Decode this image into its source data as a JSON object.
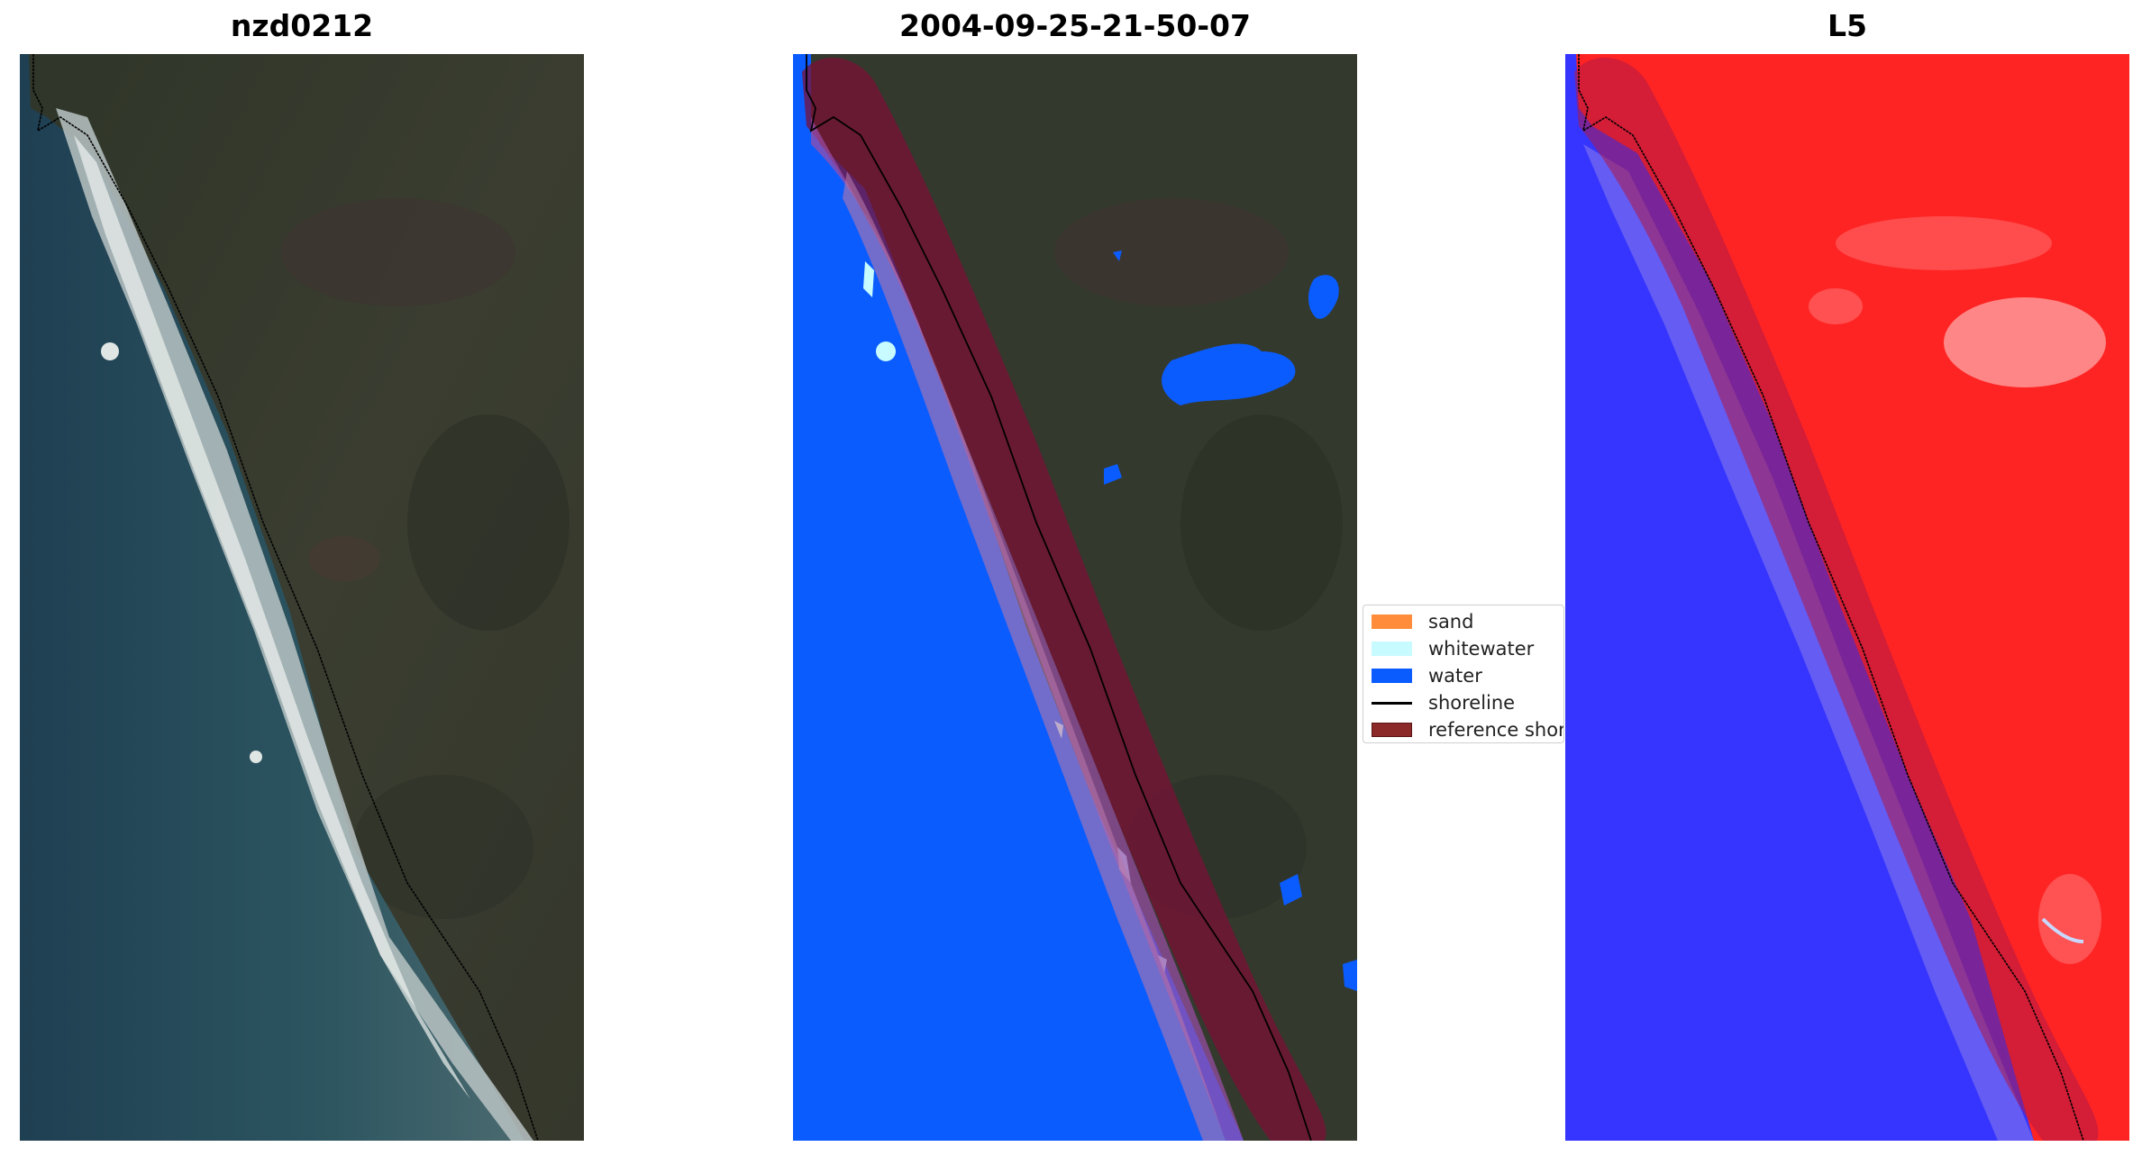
{
  "panels": {
    "rgb_title": "nzd0212",
    "classified_title": "2004-09-25-21-50-07",
    "index_title": "L5"
  },
  "legend": {
    "items": [
      {
        "label": "sand",
        "color": "#ff8c3a",
        "kind": "patch"
      },
      {
        "label": "whitewater",
        "color": "#c8fbff",
        "kind": "patch"
      },
      {
        "label": "water",
        "color": "#0a5cff",
        "kind": "patch"
      },
      {
        "label": "shoreline",
        "color": "#000000",
        "kind": "line"
      },
      {
        "label": "reference shoreline",
        "color": "#8c2a2a",
        "kind": "patch"
      }
    ]
  },
  "colors": {
    "ocean_rgb": "#294a58",
    "land_rgb": "#34392d",
    "water_class": "#0a5cff",
    "reference_buffer": "#7a1035",
    "index_positive": "#ff2020",
    "index_negative": "#3030ff"
  }
}
